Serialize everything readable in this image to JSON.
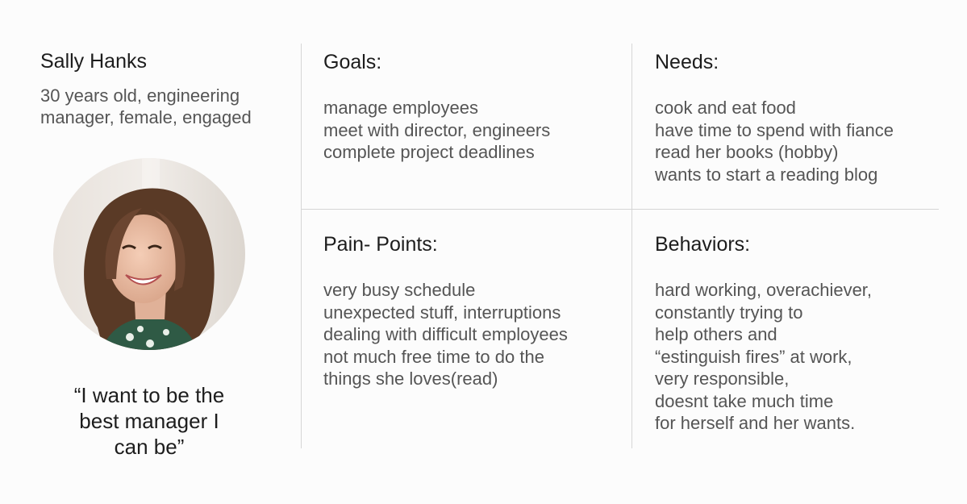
{
  "persona": {
    "name": "Sally Hanks",
    "description": [
      "30 years old, engineering",
      "manager, female, engaged"
    ],
    "photo_icon": "avatar-photo",
    "quote": [
      "“I want to be the",
      "best manager I",
      "can be”"
    ]
  },
  "sections": {
    "goals": {
      "title": "Goals:",
      "items": [
        "manage employees",
        "meet with director, engineers",
        "complete project deadlines"
      ]
    },
    "needs": {
      "title": "Needs:",
      "items": [
        "cook and eat food",
        "have time to spend with fiance",
        "read her books (hobby)",
        "wants to start a reading blog"
      ]
    },
    "pain_points": {
      "title": "Pain- Points:",
      "items": [
        "very busy schedule",
        "unexpected stuff, interruptions",
        "dealing with difficult employees",
        "not much free time to do the",
        "things she loves(read)"
      ]
    },
    "behaviors": {
      "title": "Behaviors:",
      "items": [
        "hard working, overachiever,",
        "constantly trying to",
        "help others and",
        "“estinguish fires” at work,",
        "very responsible,",
        "doesnt take much time",
        "for herself and her wants."
      ]
    }
  },
  "colors": {
    "background": "#fcfcfc",
    "divider": "#d6d6d6",
    "heading": "#1d1d1d",
    "body_text": "#555555"
  }
}
